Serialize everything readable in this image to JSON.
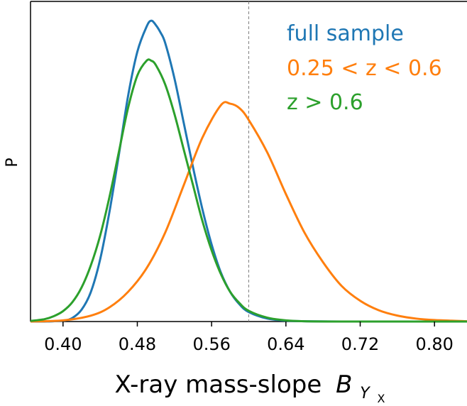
{
  "chart_data": {
    "type": "line",
    "xlabel": "X-ray mass-slope",
    "xlabel_symbol": "B",
    "xlabel_sub": "Y",
    "xlabel_subsub": "X",
    "ylabel": "P",
    "xlim": [
      0.365,
      0.835
    ],
    "ylim": [
      0,
      1.08
    ],
    "xticks": [
      0.4,
      0.48,
      0.56,
      0.64,
      0.72,
      0.8
    ],
    "xtick_labels": [
      "0.40",
      "0.48",
      "0.56",
      "0.64",
      "0.72",
      "0.80"
    ],
    "reference_line_x": 0.6,
    "grid": false,
    "legend_placement": "top-right",
    "series": [
      {
        "name": "full sample",
        "color": "#1f77b4",
        "x": [
          0.365,
          0.38,
          0.4,
          0.41,
          0.42,
          0.43,
          0.44,
          0.45,
          0.46,
          0.47,
          0.48,
          0.49,
          0.495,
          0.5,
          0.505,
          0.51,
          0.52,
          0.53,
          0.54,
          0.55,
          0.56,
          0.57,
          0.58,
          0.59,
          0.6,
          0.62,
          0.64,
          0.66,
          0.7,
          0.75,
          0.835
        ],
        "y": [
          0.0,
          0.0,
          0.003,
          0.012,
          0.04,
          0.1,
          0.21,
          0.37,
          0.56,
          0.76,
          0.91,
          0.995,
          1.015,
          1.0,
          0.975,
          0.94,
          0.82,
          0.67,
          0.52,
          0.38,
          0.26,
          0.165,
          0.1,
          0.058,
          0.032,
          0.01,
          0.003,
          0.001,
          0.0,
          0.0,
          0.0
        ]
      },
      {
        "name": "0.25 < z < 0.6",
        "color": "#ff7f0e",
        "x": [
          0.365,
          0.4,
          0.43,
          0.45,
          0.47,
          0.49,
          0.51,
          0.53,
          0.55,
          0.57,
          0.58,
          0.59,
          0.6,
          0.62,
          0.64,
          0.66,
          0.68,
          0.7,
          0.72,
          0.74,
          0.76,
          0.78,
          0.8,
          0.835
        ],
        "y": [
          0.0,
          0.004,
          0.02,
          0.048,
          0.1,
          0.18,
          0.3,
          0.46,
          0.62,
          0.73,
          0.735,
          0.72,
          0.68,
          0.57,
          0.43,
          0.3,
          0.2,
          0.12,
          0.07,
          0.038,
          0.02,
          0.01,
          0.005,
          0.001
        ]
      },
      {
        "name": "z > 0.6",
        "color": "#2ca02c",
        "x": [
          0.365,
          0.38,
          0.39,
          0.4,
          0.41,
          0.42,
          0.43,
          0.44,
          0.45,
          0.46,
          0.47,
          0.48,
          0.49,
          0.495,
          0.5,
          0.51,
          0.52,
          0.53,
          0.54,
          0.55,
          0.56,
          0.57,
          0.58,
          0.59,
          0.6,
          0.62,
          0.64,
          0.66,
          0.7,
          0.75,
          0.835
        ],
        "y": [
          0.002,
          0.008,
          0.018,
          0.035,
          0.065,
          0.115,
          0.19,
          0.29,
          0.42,
          0.57,
          0.72,
          0.83,
          0.88,
          0.88,
          0.865,
          0.8,
          0.7,
          0.58,
          0.46,
          0.34,
          0.24,
          0.16,
          0.1,
          0.062,
          0.036,
          0.013,
          0.004,
          0.001,
          0.0,
          0.0,
          0.0
        ]
      }
    ],
    "legend": [
      {
        "text": "full sample",
        "color": "#1f77b4"
      },
      {
        "text": "0.25 < z < 0.6",
        "color": "#ff7f0e"
      },
      {
        "text": "z > 0.6",
        "color": "#2ca02c"
      }
    ]
  }
}
